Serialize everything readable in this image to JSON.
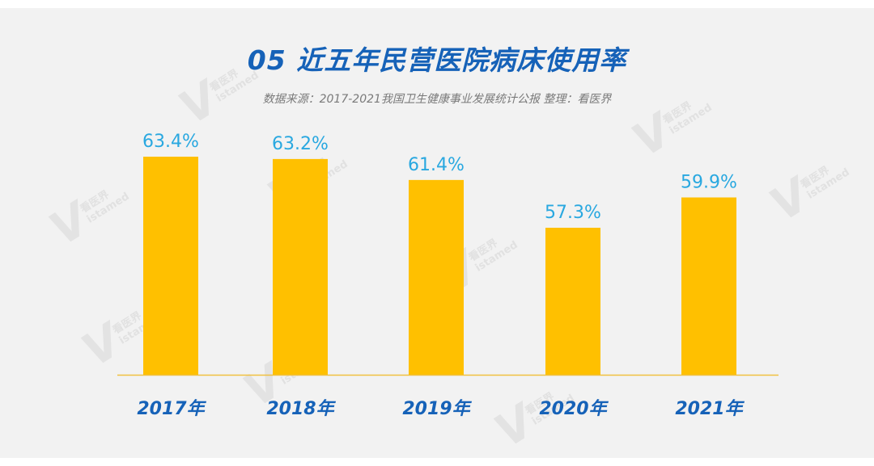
{
  "title": "05 近五年民营医院病床使用率",
  "subtitle": "数据来源：2017-2021我国卫生健康事业发展统计公报   整理：看医界",
  "watermark": {
    "logo_letter": "V",
    "brand_cn": "看医界",
    "brand_en": "istamed"
  },
  "colors": {
    "bar": "#ffc000",
    "label": "#29a8e0",
    "axis_label": "#1662b8",
    "baseline": "#f0c040"
  },
  "chart_data": {
    "type": "bar",
    "categories": [
      "2017年",
      "2018年",
      "2019年",
      "2020年",
      "2021年"
    ],
    "values": [
      63.4,
      63.2,
      61.4,
      57.3,
      59.9
    ],
    "data_labels": [
      "63.4%",
      "63.2%",
      "61.4%",
      "57.3%",
      "59.9%"
    ],
    "title": "05 近五年民营医院病床使用率",
    "xlabel": "",
    "ylabel": "",
    "grid": false,
    "legend": "none"
  }
}
